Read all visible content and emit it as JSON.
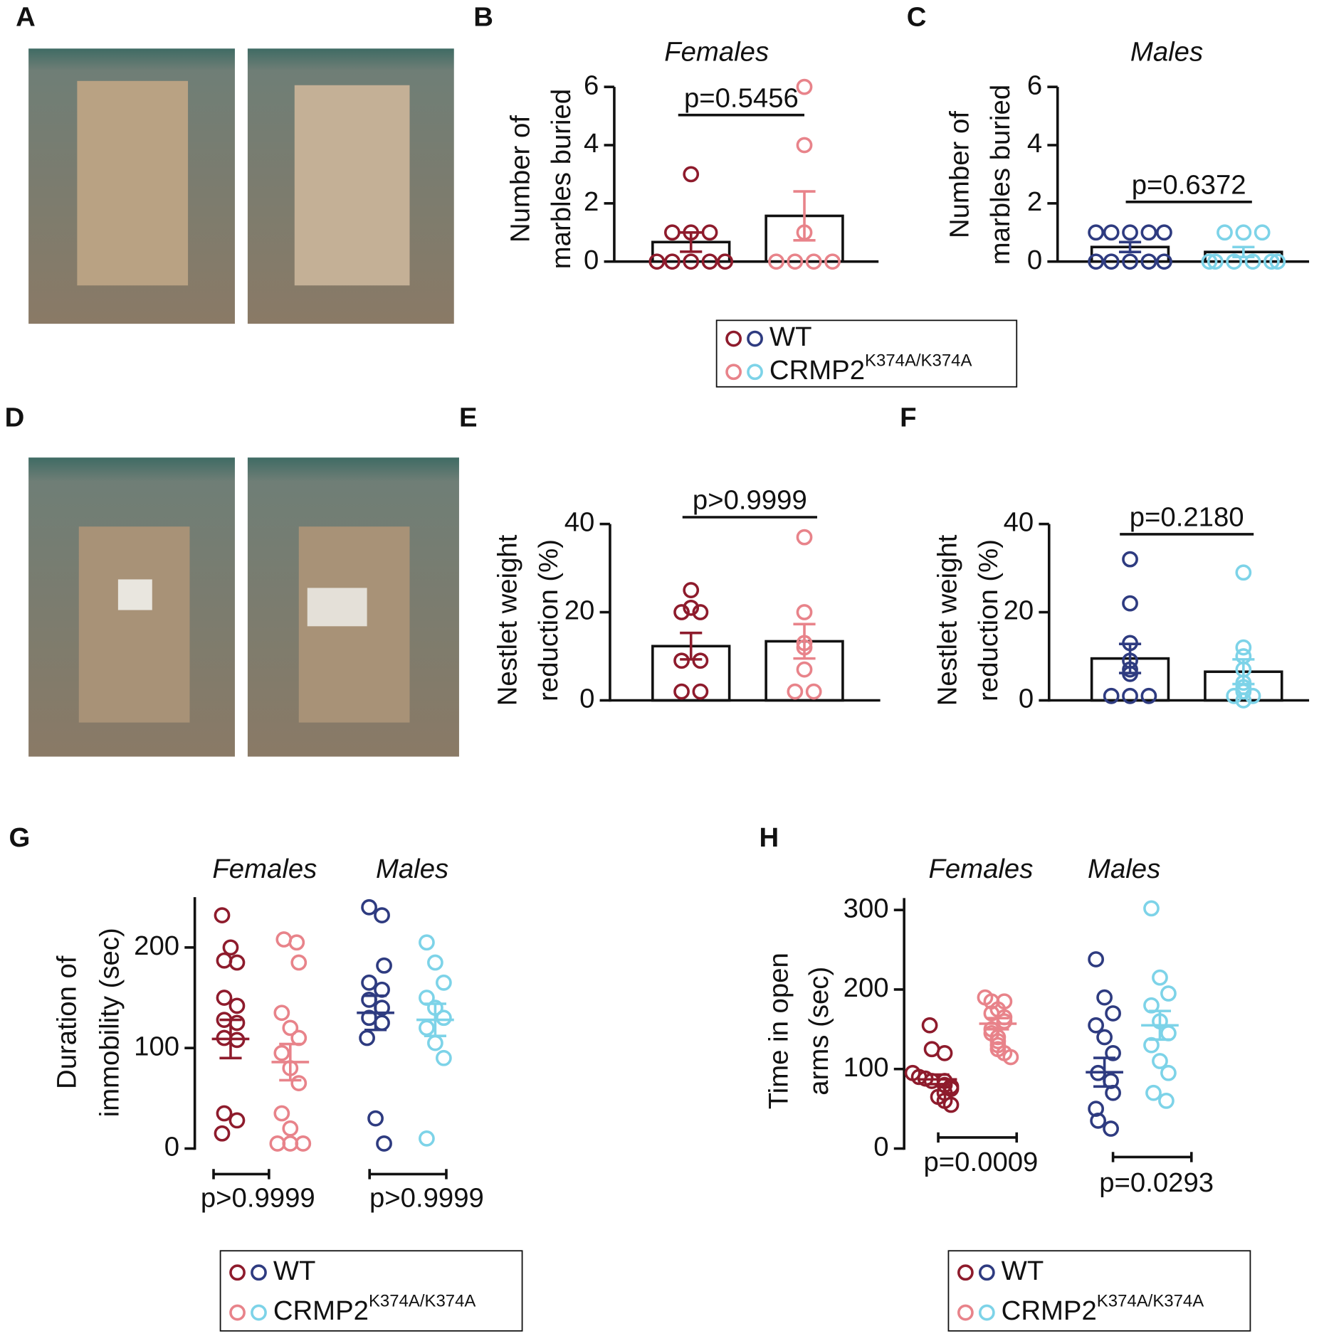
{
  "photo_panels": [
    "A",
    "D"
  ],
  "chart_data": [
    {
      "type": "bar",
      "panel": "B",
      "title": "Females",
      "ylabel": [
        "Number of",
        "marbles buried"
      ],
      "ylim": [
        0,
        6
      ],
      "yticks": [
        0,
        2,
        4,
        6
      ],
      "annotation": "p=0.5456",
      "series": [
        {
          "color": "#8e1b2c",
          "values": [
            0,
            0,
            0,
            0,
            0,
            1,
            1,
            1,
            3
          ],
          "mean": 0.67,
          "sem": 0.33
        },
        {
          "color": "#e8838a",
          "values": [
            0,
            0,
            0,
            0,
            1,
            4,
            6
          ],
          "mean": 1.57,
          "sem": 0.84
        }
      ]
    },
    {
      "type": "bar",
      "panel": "C",
      "title": "Males",
      "ylabel": [
        "Number of",
        "marbles buried"
      ],
      "ylim": [
        0,
        6
      ],
      "yticks": [
        0,
        2,
        4,
        6
      ],
      "annotation": "p=0.6372",
      "series": [
        {
          "color": "#2e3b80",
          "values": [
            0,
            0,
            0,
            0,
            0,
            1,
            1,
            1,
            1,
            1
          ],
          "mean": 0.5,
          "sem": 0.17
        },
        {
          "color": "#7dd3e8",
          "values": [
            0,
            0,
            0,
            0,
            0,
            0,
            1,
            1,
            1
          ],
          "mean": 0.33,
          "sem": 0.17
        }
      ]
    },
    {
      "type": "bar",
      "panel": "E",
      "ylabel": [
        "Nestlet weight",
        "reduction (%)"
      ],
      "ylim": [
        0,
        40
      ],
      "yticks": [
        0,
        20,
        40
      ],
      "annotation": "p>0.9999",
      "series": [
        {
          "color": "#8e1b2c",
          "values": [
            25,
            21,
            20,
            20,
            9,
            9,
            2,
            2
          ],
          "mean": 12.3,
          "sem": 3.0
        },
        {
          "color": "#e8838a",
          "values": [
            37,
            20,
            13,
            12,
            7,
            2,
            2
          ],
          "mean": 13.4,
          "sem": 3.9
        }
      ]
    },
    {
      "type": "bar",
      "panel": "F",
      "ylabel": [
        "Nestlet weight",
        "reduction (%)"
      ],
      "ylim": [
        0,
        40
      ],
      "yticks": [
        0,
        20,
        40
      ],
      "annotation": "p=0.2180",
      "series": [
        {
          "color": "#2e3b80",
          "values": [
            32,
            22,
            13,
            9,
            7,
            6,
            1,
            1,
            1
          ],
          "mean": 9.5,
          "sem": 3.3
        },
        {
          "color": "#7dd3e8",
          "values": [
            29,
            12,
            10,
            7,
            4,
            3,
            2,
            1,
            1,
            0
          ],
          "mean": 6.5,
          "sem": 2.8
        }
      ]
    },
    {
      "type": "dot",
      "panel": "G",
      "ylabel": [
        "Duration of",
        "immobility (sec)"
      ],
      "ylim": [
        0,
        250
      ],
      "yticks": [
        0,
        100,
        200
      ],
      "groups": [
        {
          "title": "Females",
          "annotation": "p>0.9999"
        },
        {
          "title": "Males",
          "annotation": "p>0.9999"
        }
      ],
      "series": [
        {
          "color": "#8e1b2c",
          "values": [
            232,
            200,
            187,
            185,
            150,
            142,
            128,
            125,
            110,
            108,
            35,
            28,
            15
          ],
          "mean": 109,
          "sem": 19
        },
        {
          "color": "#e8838a",
          "values": [
            208,
            205,
            185,
            135,
            120,
            110,
            95,
            80,
            65,
            35,
            20,
            5,
            5,
            5
          ],
          "mean": 86,
          "sem": 18
        },
        {
          "color": "#2e3b80",
          "values": [
            240,
            232,
            182,
            165,
            158,
            148,
            140,
            130,
            125,
            110,
            30,
            5
          ],
          "mean": 135,
          "sem": 17
        },
        {
          "color": "#7dd3e8",
          "values": [
            205,
            185,
            165,
            150,
            140,
            130,
            120,
            105,
            90,
            10
          ],
          "mean": 128,
          "sem": 16
        }
      ]
    },
    {
      "type": "dot",
      "panel": "H",
      "ylabel": [
        "Time in open",
        "arms (sec)"
      ],
      "ylim": [
        0,
        315
      ],
      "yticks": [
        0,
        100,
        200,
        300
      ],
      "groups": [
        {
          "title": "Females",
          "annotation": "p=0.0009"
        },
        {
          "title": "Males",
          "annotation": "p=0.0293"
        }
      ],
      "series": [
        {
          "color": "#8e1b2c",
          "values": [
            155,
            125,
            120,
            95,
            90,
            88,
            85,
            85,
            80,
            78,
            75,
            70,
            65,
            60,
            55
          ],
          "mean": 87,
          "sem": 6
        },
        {
          "color": "#e8838a",
          "values": [
            190,
            185,
            185,
            175,
            170,
            165,
            160,
            150,
            145,
            140,
            135,
            130,
            125,
            120,
            115
          ],
          "mean": 157,
          "sem": 7
        },
        {
          "color": "#2e3b80",
          "values": [
            238,
            190,
            170,
            155,
            140,
            120,
            95,
            85,
            70,
            50,
            35,
            25
          ],
          "mean": 96,
          "sem": 18
        },
        {
          "color": "#7dd3e8",
          "values": [
            302,
            215,
            195,
            180,
            160,
            145,
            130,
            110,
            95,
            70,
            60
          ],
          "mean": 155,
          "sem": 18
        }
      ]
    }
  ],
  "legends": [
    {
      "items": [
        {
          "text": "WT",
          "colors": [
            "#8e1b2c",
            "#2e3b80"
          ]
        },
        {
          "text": "CRMP2",
          "sup": "K374A/K374A",
          "colors": [
            "#e8838a",
            "#7dd3e8"
          ]
        }
      ]
    },
    {
      "items": [
        {
          "text": "WT",
          "colors": [
            "#8e1b2c",
            "#2e3b80"
          ]
        },
        {
          "text": "CRMP2",
          "sup": "K374A/K374A",
          "colors": [
            "#e8838a",
            "#7dd3e8"
          ]
        }
      ]
    },
    {
      "items": [
        {
          "text": "WT",
          "colors": [
            "#8e1b2c",
            "#2e3b80"
          ]
        },
        {
          "text": "CRMP2",
          "sup": "K374A/K374A",
          "colors": [
            "#e8838a",
            "#7dd3e8"
          ]
        }
      ]
    }
  ]
}
